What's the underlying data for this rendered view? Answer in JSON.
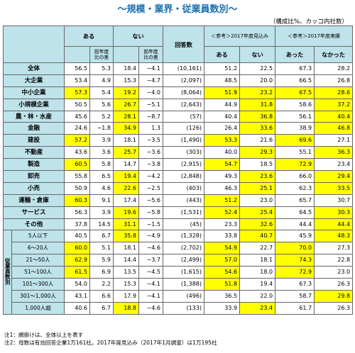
{
  "title": "〜規模・業界・従業員数別〜",
  "unit_note": "（構成比%、カッコ内社数）",
  "headers": {
    "aru": "ある",
    "nai": "ない",
    "diff": "前年度\n比の差",
    "responses": "回答数",
    "ref_plan": "＜参考＞2017年度見込み",
    "ref_actual": "＜参考＞2017年度実績",
    "plan_aru": "ある",
    "plan_nai": "ない",
    "act_atta": "あった",
    "act_nakatta": "なかった"
  },
  "side_label": "従業員数別",
  "rows": [
    {
      "label": "全体",
      "aru": "56.5",
      "aru_d": "5.3",
      "nai": "18.4",
      "nai_d": "−4.1",
      "n": "(10,161)",
      "p1": "51.2",
      "p2": "22.5",
      "a1": "67.3",
      "a2": "28.2",
      "hl": []
    },
    {
      "label": "大企業",
      "aru": "53.4",
      "aru_d": "4.9",
      "nai": "15.3",
      "nai_d": "−4.7",
      "n": "(2,097)",
      "p1": "48.5",
      "p2": "20.0",
      "a1": "66.5",
      "a2": "26.8",
      "hl": []
    },
    {
      "label": "中小企業",
      "aru": "57.3",
      "aru_d": "5.4",
      "nai": "19.2",
      "nai_d": "−4.0",
      "n": "(8,064)",
      "p1": "51.9",
      "p2": "23.2",
      "a1": "67.5",
      "a2": "28.6",
      "hl": [
        "aru",
        "nai",
        "p1",
        "p2",
        "a1",
        "a2"
      ]
    },
    {
      "label": "小規模企業",
      "aru": "50.5",
      "aru_d": "5.6",
      "nai": "26.7",
      "nai_d": "−5.1",
      "n": "(2,643)",
      "p1": "44.9",
      "p2": "31.8",
      "a1": "58.6",
      "a2": "37.2",
      "hl": [
        "nai",
        "p2",
        "a2"
      ]
    },
    {
      "label": "農・林・水産",
      "aru": "45.6",
      "aru_d": "5.2",
      "nai": "28.1",
      "nai_d": "−8.7",
      "n": "(57)",
      "p1": "40.4",
      "p2": "36.8",
      "a1": "56.1",
      "a2": "40.4",
      "hl": [
        "nai",
        "p2",
        "a2"
      ]
    },
    {
      "label": "金融",
      "aru": "24.6",
      "aru_d": "−1.8",
      "nai": "34.9",
      "nai_d": "1.3",
      "n": "(126)",
      "p1": "26.4",
      "p2": "33.6",
      "a1": "38.9",
      "a2": "46.8",
      "hl": [
        "nai",
        "p2",
        "a2"
      ]
    },
    {
      "label": "建設",
      "aru": "57.2",
      "aru_d": "3.9",
      "nai": "18.1",
      "nai_d": "−3.5",
      "n": "(1,490)",
      "p1": "53.3",
      "p2": "21.6",
      "a1": "69.6",
      "a2": "27.1",
      "hl": [
        "aru",
        "p1",
        "a1"
      ]
    },
    {
      "label": "不動産",
      "aru": "43.6",
      "aru_d": "3.6",
      "nai": "25.7",
      "nai_d": "−3.6",
      "n": "(303)",
      "p1": "40.0",
      "p2": "29.3",
      "a1": "55.1",
      "a2": "36.3",
      "hl": [
        "nai",
        "p2",
        "a2"
      ]
    },
    {
      "label": "製造",
      "aru": "60.5",
      "aru_d": "5.8",
      "nai": "14.7",
      "nai_d": "−3.8",
      "n": "(2,915)",
      "p1": "54.7",
      "p2": "18.5",
      "a1": "72.9",
      "a2": "23.4",
      "hl": [
        "aru",
        "p1",
        "a1"
      ]
    },
    {
      "label": "卸売",
      "aru": "55.8",
      "aru_d": "6.5",
      "nai": "19.4",
      "nai_d": "−4.2",
      "n": "(2,848)",
      "p1": "49.3",
      "p2": "23.6",
      "a1": "66.0",
      "a2": "29.4",
      "hl": [
        "nai",
        "p2",
        "a2"
      ]
    },
    {
      "label": "小売",
      "aru": "50.9",
      "aru_d": "4.6",
      "nai": "22.6",
      "nai_d": "−2.5",
      "n": "(403)",
      "p1": "46.3",
      "p2": "25.1",
      "a1": "62.3",
      "a2": "33.5",
      "hl": [
        "nai",
        "p2",
        "a2"
      ]
    },
    {
      "label": "運輸・倉庫",
      "aru": "60.3",
      "aru_d": "9.1",
      "nai": "17.4",
      "nai_d": "−5.6",
      "n": "(443)",
      "p1": "51.2",
      "p2": "23.0",
      "a1": "65.7",
      "a2": "30.7",
      "hl": [
        "aru",
        "p1"
      ]
    },
    {
      "label": "サービス",
      "aru": "56.3",
      "aru_d": "3.9",
      "nai": "19.6",
      "nai_d": "−5.8",
      "n": "(1,531)",
      "p1": "52.4",
      "p2": "25.4",
      "a1": "64.5",
      "a2": "30.3",
      "hl": [
        "nai",
        "p1",
        "p2",
        "a2"
      ]
    },
    {
      "label": "その他",
      "aru": "37.8",
      "aru_d": "14.5",
      "nai": "31.1",
      "nai_d": "−1.5",
      "n": "(45)",
      "p1": "23.3",
      "p2": "32.6",
      "a1": "44.4",
      "a2": "44.4",
      "hl": [
        "nai",
        "p2",
        "a2"
      ]
    },
    {
      "label": "5人以下",
      "aru": "40.5",
      "aru_d": "6.7",
      "nai": "35.8",
      "nai_d": "−4.9",
      "n": "(1,328)",
      "p1": "33.8",
      "p2": "40.7",
      "a1": "45.9",
      "a2": "48.3",
      "hl": [
        "nai",
        "p2",
        "a2"
      ]
    },
    {
      "label": "6〜20人",
      "aru": "60.0",
      "aru_d": "5.1",
      "nai": "18.1",
      "nai_d": "−4.6",
      "n": "(2,702)",
      "p1": "54.9",
      "p2": "22.7",
      "a1": "70.0",
      "a2": "27.3",
      "hl": [
        "aru",
        "p1",
        "a1"
      ]
    },
    {
      "label": "21〜50人",
      "aru": "62.9",
      "aru_d": "5.9",
      "nai": "14.4",
      "nai_d": "−3.7",
      "n": "(2,499)",
      "p1": "57.0",
      "p2": "18.1",
      "a1": "74.3",
      "a2": "22.8",
      "hl": [
        "aru",
        "p1",
        "a1"
      ]
    },
    {
      "label": "51〜100人",
      "aru": "61.5",
      "aru_d": "6.9",
      "nai": "13.5",
      "nai_d": "−4.5",
      "n": "(1,615)",
      "p1": "54.6",
      "p2": "18.0",
      "a1": "72.9",
      "a2": "23.0",
      "hl": [
        "aru",
        "p1",
        "a1"
      ]
    },
    {
      "label": "101〜300人",
      "aru": "54.0",
      "aru_d": "2.2",
      "nai": "15.3",
      "nai_d": "−4.1",
      "n": "(1,388)",
      "p1": "51.8",
      "p2": "19.4",
      "a1": "67.3",
      "a2": "26.3",
      "hl": [
        "p1"
      ]
    },
    {
      "label": "301〜1,000人",
      "aru": "43.1",
      "aru_d": "6.6",
      "nai": "17.9",
      "nai_d": "−4.1",
      "n": "(496)",
      "p1": "36.5",
      "p2": "22.0",
      "a1": "58.7",
      "a2": "29.8",
      "hl": [
        "a2"
      ]
    },
    {
      "label": "1,000人超",
      "aru": "40.6",
      "aru_d": "6.7",
      "nai": "18.8",
      "nai_d": "−4.6",
      "n": "(133)",
      "p1": "33.9",
      "p2": "23.4",
      "a1": "61.7",
      "a2": "26.3",
      "hl": [
        "nai",
        "p2"
      ]
    }
  ],
  "notes": [
    "注1：網掛けは、全体以上を表す",
    "注2：母数は有効回答企業1万161社。2017年度見込み（2017年1月調査）は1万195社"
  ]
}
